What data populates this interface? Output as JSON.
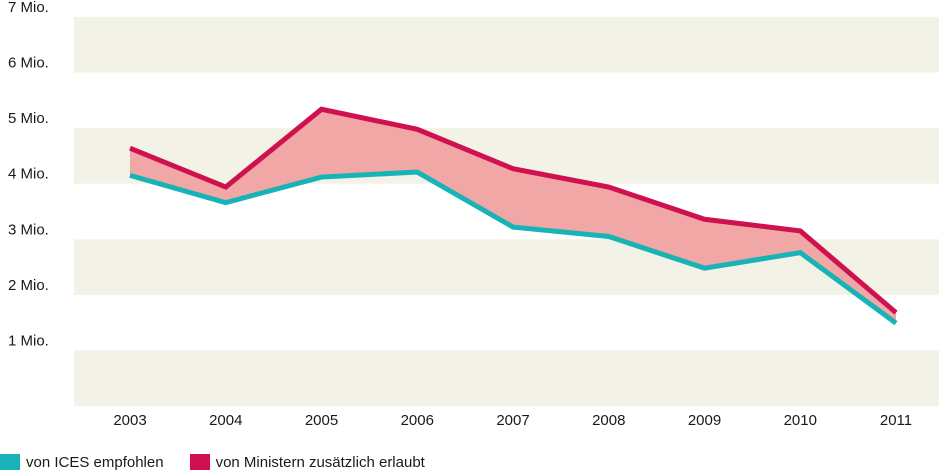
{
  "chart_data": {
    "type": "area",
    "categories": [
      "2003",
      "2004",
      "2005",
      "2006",
      "2007",
      "2008",
      "2009",
      "2010",
      "2011"
    ],
    "series": [
      {
        "name": "von ICES empfohlen",
        "values": [
          4.15,
          3.66,
          4.12,
          4.21,
          3.22,
          3.05,
          2.48,
          2.76,
          1.49
        ],
        "color": "#17b3b6"
      },
      {
        "name": "von Ministern zusätzlich erlaubt",
        "values": [
          4.64,
          3.94,
          5.34,
          4.98,
          4.27,
          3.94,
          3.36,
          3.15,
          1.68
        ],
        "color": "#cf1150"
      }
    ],
    "band_fill": "#f0a7a5",
    "grid_band_color": "#f2f2e6",
    "ylim": [
      0,
      7
    ],
    "y_ticks": [
      {
        "value": 1,
        "label": "1 Mio."
      },
      {
        "value": 2,
        "label": "2 Mio."
      },
      {
        "value": 3,
        "label": "3 Mio."
      },
      {
        "value": 4,
        "label": "4 Mio."
      },
      {
        "value": 5,
        "label": "5 Mio."
      },
      {
        "value": 6,
        "label": "6 Mio."
      },
      {
        "value": 7,
        "label": "7 Mio."
      }
    ],
    "legend_position": "bottom-left"
  }
}
